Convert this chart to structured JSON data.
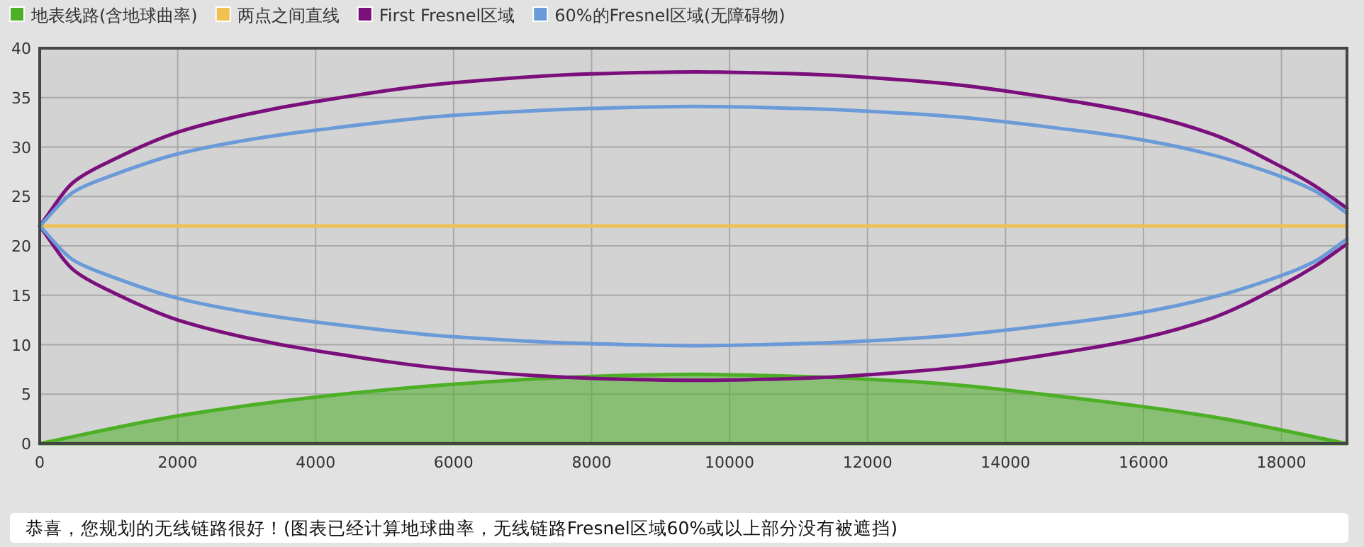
{
  "chart_data": {
    "type": "line",
    "xlim": [
      0,
      18950
    ],
    "ylim": [
      0,
      40
    ],
    "xticks": [
      0,
      2000,
      4000,
      6000,
      8000,
      10000,
      12000,
      14000,
      16000,
      18000
    ],
    "yticks": [
      0,
      5,
      10,
      15,
      20,
      25,
      30,
      35,
      40
    ],
    "grid": true,
    "legend": "top left",
    "marker": "none",
    "line_style": "solid",
    "series": [
      {
        "name": "地表线路(含地球曲率)",
        "type": "area",
        "color": "#4caf26",
        "x": [
          0,
          2000,
          4000,
          6000,
          8000,
          9500,
          11000,
          13000,
          15000,
          17000,
          18950
        ],
        "values": [
          0,
          2.8,
          4.7,
          6.0,
          6.8,
          7.0,
          6.8,
          6.1,
          4.6,
          2.7,
          0
        ]
      },
      {
        "name": "两点之间直线",
        "color": "#f0c050",
        "x": [
          0,
          18950
        ],
        "values": [
          22,
          22
        ]
      },
      {
        "name": "First Fresnel区域",
        "color": "#7b0f7b",
        "x": [
          0,
          500,
          1000,
          2000,
          3000,
          4000,
          6000,
          8000,
          9500,
          11000,
          13000,
          15000,
          16000,
          17000,
          18000,
          18500,
          18950
        ],
        "values": [
          22,
          26.5,
          28.5,
          31.5,
          33.3,
          34.6,
          36.5,
          37.4,
          37.6,
          37.4,
          36.5,
          34.6,
          33.3,
          31.3,
          28,
          26,
          23.8
        ]
      },
      {
        "color": "#7b0f7b",
        "x": [
          0,
          500,
          1000,
          2000,
          3000,
          4000,
          6000,
          8000,
          9500,
          11000,
          13000,
          15000,
          16000,
          17000,
          18000,
          18500,
          18950
        ],
        "values": [
          22,
          17.5,
          15.5,
          12.5,
          10.7,
          9.4,
          7.5,
          6.6,
          6.4,
          6.6,
          7.5,
          9.4,
          10.7,
          12.7,
          16,
          18,
          20.2
        ]
      },
      {
        "name": "60%的Fresnel区域(无障碍物)",
        "color": "#6a9ad8",
        "x": [
          0,
          500,
          1000,
          2000,
          3000,
          4000,
          6000,
          8000,
          9500,
          11000,
          13000,
          15000,
          16000,
          17000,
          18000,
          18500,
          18950
        ],
        "values": [
          22,
          25.5,
          27,
          29.3,
          30.7,
          31.7,
          33.2,
          33.9,
          34.1,
          33.9,
          33.2,
          31.7,
          30.7,
          29.2,
          27,
          25.5,
          23.3
        ]
      },
      {
        "color": "#6a9ad8",
        "x": [
          0,
          500,
          1000,
          2000,
          3000,
          4000,
          6000,
          8000,
          9500,
          11000,
          13000,
          15000,
          16000,
          17000,
          18000,
          18500,
          18950
        ],
        "values": [
          22,
          18.5,
          17,
          14.7,
          13.3,
          12.3,
          10.8,
          10.1,
          9.9,
          10.1,
          10.8,
          12.3,
          13.3,
          14.8,
          17,
          18.5,
          20.7
        ]
      }
    ],
    "annotations": [
      "恭喜，您规划的无线链路很好！(图表已经计算地球曲率，无线链路Fresnel区域60%或以上部分没有被遮挡)"
    ]
  }
}
